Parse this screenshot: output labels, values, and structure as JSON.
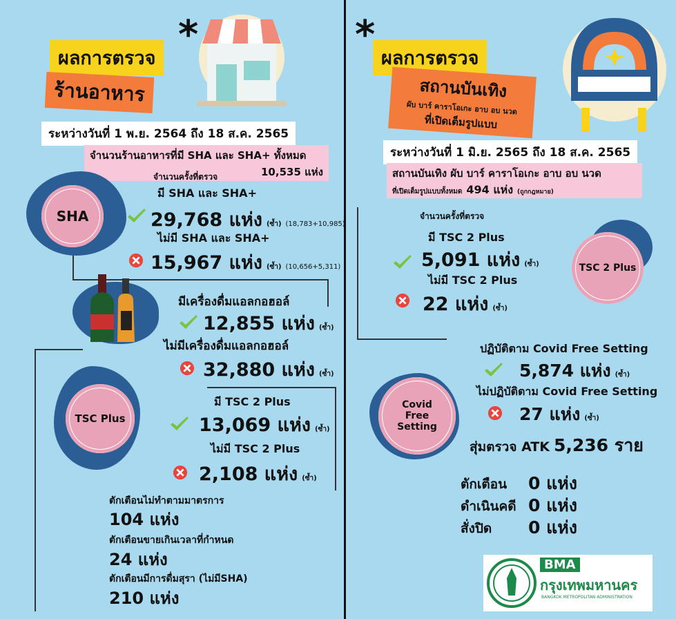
{
  "left": {
    "title": "ผลการตรวจ",
    "subtitle": "ร้านอาหาร",
    "period": "ระหว่างวันที่ 1 พ.ย. 2564 ถึง 18 ส.ค. 2565",
    "total_label": "จำนวนร้านอาหารที่มี SHA และ SHA+ ทั้งหมด",
    "total_value": "10,535 แห่ง",
    "inspections_label": "จำนวนครั้งที่ตรวจ",
    "sha_badge": "SHA",
    "tsc_badge": "TSC Plus",
    "results": [
      {
        "label": "มี SHA และ SHA+",
        "value": "29,768 แห่ง",
        "note": "(ซ้ำ)",
        "detail": "(18,783+10,985)"
      },
      {
        "label": "ไม่มี SHA และ SHA+",
        "value": "15,967 แห่ง",
        "note": "(ซ้ำ)",
        "detail": "(10,656+5,311)"
      },
      {
        "label": "มีเครื่องดื่มแอลกอฮอล์",
        "value": "12,855 แห่ง",
        "note": "(ซ้ำ)"
      },
      {
        "label": "ไม่มีเครื่องดื่มแอลกอฮอล์",
        "value": "32,880 แห่ง",
        "note": "(ซ้ำ)"
      },
      {
        "label": "มี TSC 2 Plus",
        "value": "13,069 แห่ง",
        "note": "(ซ้ำ)"
      },
      {
        "label": "ไม่มี TSC 2 Plus",
        "value": "2,108 แห่ง",
        "note": "(ซ้ำ)"
      }
    ],
    "warnings": [
      {
        "label": "ตักเตือนไม่ทำตามมาตรการ",
        "value": "104 แห่ง"
      },
      {
        "label": "ตักเตือนขายเกินเวลาที่กำหนด",
        "value": "24 แห่ง"
      },
      {
        "label": "ตักเตือนมีการดื่มสุรา (ไม่มีSHA)",
        "value": "210 แห่ง"
      }
    ]
  },
  "right": {
    "title": "ผลการตรวจ",
    "subtitle": "สถานบันเทิง",
    "subtitle_line2": "ผับ บาร์ คาราโอเกะ อาบ อบ นวด",
    "subtitle_line3": "ที่เปิดเต็มรูปแบบ",
    "period": "ระหว่างวันที่ 1 มิ.ย. 2565 ถึง 18 ส.ค. 2565",
    "total_label": "สถานบันเทิง ผับ บาร์ คาราโอเกะ อาบ อบ นวด",
    "total_label2": "ที่เปิดเต็มรูปแบบทั้งหมด",
    "total_value": "494 แห่ง",
    "total_note": "(ถูกกฎหมาย)",
    "inspections_label": "จำนวนครั้งที่ตรวจ",
    "tsc_badge": "TSC 2 Plus",
    "covid_badge": [
      "Covid",
      "Free",
      "Setting"
    ],
    "results": [
      {
        "label": "มี TSC 2 Plus",
        "value": "5,091 แห่ง",
        "note": "(ซ้ำ)"
      },
      {
        "label": "ไม่มี TSC 2 Plus",
        "value": "22 แห่ง",
        "note": "(ซ้ำ)"
      },
      {
        "label": "ปฏิบัติตาม Covid Free Setting",
        "value": "5,874 แห่ง",
        "note": "(ซ้ำ)"
      },
      {
        "label": "ไม่ปฏิบัติตาม Covid Free Setting",
        "value": "27 แห่ง",
        "note": "(ซ้ำ)"
      }
    ],
    "atk_label": "สุ่มตรวจ ATK",
    "atk_value": "5,236 ราย",
    "actions": [
      {
        "label": "ตักเตือน",
        "value": "0 แห่ง"
      },
      {
        "label": "ดำเนินคดี",
        "value": "0 แห่ง"
      },
      {
        "label": "สั่งปิด",
        "value": "0 แห่ง"
      }
    ]
  },
  "logo": {
    "short": "BMA",
    "name": "กรุงเทพมหานคร",
    "english": "BANGKOK METROPOLITAN ADMINISTRATION"
  }
}
